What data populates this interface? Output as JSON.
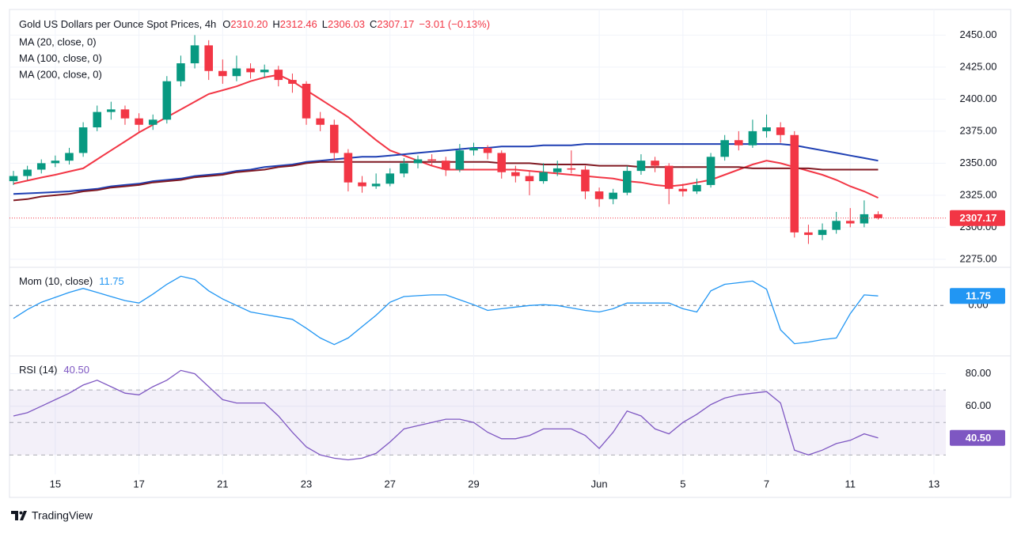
{
  "chart_data": [
    {
      "type": "candlestick",
      "title": "Gold US Dollars per Ounce Spot Prices, 4h",
      "ohlc_legend": [
        {
          "label": "O",
          "value": "2310.20"
        },
        {
          "label": "H",
          "value": "2312.46"
        },
        {
          "label": "L",
          "value": "2306.03"
        },
        {
          "label": "C",
          "value": "2307.17"
        }
      ],
      "change": "−3.01 (−0.13%)",
      "categories": [
        null,
        null,
        null,
        "15",
        null,
        null,
        null,
        null,
        null,
        "17",
        null,
        null,
        null,
        null,
        null,
        "21",
        null,
        null,
        null,
        null,
        null,
        "23",
        null,
        null,
        null,
        null,
        null,
        "27",
        null,
        null,
        null,
        null,
        null,
        "29",
        null,
        null,
        null,
        null,
        null,
        null,
        null,
        null,
        "Jun",
        null,
        null,
        null,
        null,
        null,
        "5",
        null,
        null,
        null,
        null,
        null,
        "7",
        null,
        null,
        null,
        null,
        null,
        "11",
        null,
        null,
        null,
        null,
        null,
        "13"
      ],
      "open": [
        2336,
        2340,
        2345,
        2350,
        2352,
        2358,
        2378,
        2390,
        2392,
        2385,
        2380,
        2384,
        2414,
        2428,
        2442,
        2422,
        2418,
        2424,
        2421,
        2423,
        2415,
        2412,
        2385,
        2380,
        2358,
        2335,
        2332,
        2334,
        2342,
        2350,
        2353,
        2352,
        2345,
        2360,
        2362,
        2358,
        2343,
        2340,
        2336,
        2343,
        2346,
        2345,
        2328,
        2322,
        2327,
        2344,
        2352,
        2348,
        2330,
        2328,
        2333,
        2355,
        2368,
        2364,
        2375,
        2378,
        2372,
        2296,
        2294,
        2298,
        2305,
        2303,
        2310.2,
        null,
        null,
        null,
        null
      ],
      "high": [
        2344,
        2348,
        2353,
        2356,
        2362,
        2382,
        2395,
        2398,
        2395,
        2389,
        2388,
        2418,
        2434,
        2450,
        2446,
        2431,
        2434,
        2428,
        2427,
        2426,
        2420,
        2414,
        2390,
        2384,
        2361,
        2340,
        2342,
        2346,
        2354,
        2356,
        2357,
        2355,
        2365,
        2366,
        2364,
        2360,
        2348,
        2344,
        2350,
        2352,
        2360,
        2348,
        2331,
        2330,
        2348,
        2357,
        2355,
        2350,
        2334,
        2338,
        2358,
        2372,
        2375,
        2384,
        2388,
        2382,
        2375,
        2302,
        2303,
        2312,
        2315,
        2321,
        2312.46,
        null,
        null,
        null,
        null
      ],
      "low": [
        2333,
        2337,
        2342,
        2347,
        2349,
        2355,
        2375,
        2384,
        2380,
        2374,
        2376,
        2381,
        2410,
        2424,
        2415,
        2412,
        2414,
        2416,
        2417,
        2410,
        2405,
        2380,
        2375,
        2352,
        2328,
        2327,
        2330,
        2332,
        2339,
        2346,
        2348,
        2340,
        2343,
        2356,
        2353,
        2338,
        2335,
        2325,
        2334,
        2340,
        2342,
        2322,
        2316,
        2318,
        2325,
        2341,
        2343,
        2318,
        2324,
        2326,
        2331,
        2352,
        2360,
        2362,
        2370,
        2366,
        2292,
        2287,
        2290,
        2295,
        2300,
        2300,
        2306.03,
        null,
        null,
        null,
        null
      ],
      "close": [
        2340,
        2345,
        2350,
        2352,
        2358,
        2378,
        2390,
        2392,
        2385,
        2380,
        2384,
        2414,
        2428,
        2442,
        2422,
        2418,
        2424,
        2421,
        2423,
        2415,
        2412,
        2385,
        2380,
        2358,
        2335,
        2332,
        2334,
        2342,
        2350,
        2353,
        2352,
        2345,
        2360,
        2362,
        2358,
        2343,
        2340,
        2336,
        2343,
        2346,
        2345,
        2328,
        2322,
        2327,
        2344,
        2352,
        2348,
        2330,
        2328,
        2333,
        2355,
        2368,
        2364,
        2375,
        2378,
        2372,
        2296,
        2294,
        2298,
        2305,
        2303,
        2310.18,
        2307.17,
        null,
        null,
        null,
        null
      ],
      "up_color": "#089981",
      "down_color": "#f23645",
      "series": [
        {
          "name": "MA (20, close, 0)",
          "color": "#f23645",
          "values": [
            2334,
            2336.4,
            2338.8,
            2341,
            2343.5,
            2346,
            2353,
            2360,
            2367,
            2374,
            2380,
            2386,
            2392,
            2398,
            2404,
            2407,
            2410,
            2414,
            2417,
            2419,
            2414,
            2407,
            2400,
            2393,
            2386,
            2377,
            2368,
            2360,
            2356,
            2352,
            2348,
            2345,
            2345,
            2345,
            2345,
            2345,
            2345,
            2344,
            2343,
            2342,
            2341,
            2340,
            2339,
            2338,
            2336,
            2335,
            2333,
            2332,
            2333,
            2335,
            2337,
            2341,
            2345,
            2349,
            2352,
            2350,
            2347,
            2344,
            2341,
            2337,
            2332,
            2328,
            2323,
            null,
            null,
            null,
            null
          ]
        },
        {
          "name": "MA (100, close, 0)",
          "color": "#1e3fb3",
          "values": [
            2326,
            2326.5,
            2327,
            2327.5,
            2328,
            2329,
            2330,
            2332,
            2333,
            2334,
            2336,
            2337,
            2338,
            2340,
            2341,
            2342,
            2344,
            2345,
            2347,
            2348,
            2349,
            2351,
            2352,
            2353,
            2354,
            2355,
            2355,
            2356,
            2357,
            2358,
            2359,
            2360,
            2361,
            2362,
            2362,
            2363,
            2363,
            2363,
            2364,
            2364,
            2364,
            2365,
            2365,
            2365,
            2365,
            2365,
            2365,
            2365,
            2365,
            2365,
            2365,
            2365,
            2365,
            2365,
            2365,
            2365,
            2364,
            2362,
            2360,
            2358,
            2356,
            2354,
            2352,
            null,
            null,
            null,
            null
          ]
        },
        {
          "name": "MA (200, close, 0)",
          "color": "#801922",
          "values": [
            2321,
            2322,
            2324,
            2325,
            2326,
            2328,
            2329,
            2331,
            2332,
            2333,
            2335,
            2336,
            2337,
            2339,
            2340,
            2341,
            2343,
            2344,
            2345,
            2347,
            2348,
            2350,
            2351,
            2351,
            2351,
            2351,
            2351,
            2351,
            2351,
            2351,
            2351,
            2351,
            2351,
            2351,
            2351,
            2350,
            2350,
            2350,
            2349,
            2349,
            2349,
            2349,
            2348,
            2348,
            2348,
            2347,
            2347,
            2347,
            2347,
            2347,
            2347,
            2347,
            2347,
            2346,
            2346,
            2346,
            2346,
            2346,
            2345,
            2345,
            2345,
            2345,
            2345,
            null,
            null,
            null,
            null
          ]
        }
      ],
      "ylim": [
        2270,
        2470
      ],
      "yticks": [
        {
          "value": 2275,
          "label": "2275.00"
        },
        {
          "value": 2300,
          "label": "2300.00"
        },
        {
          "value": 2325,
          "label": "2325.00"
        },
        {
          "value": 2350,
          "label": "2350.00"
        },
        {
          "value": 2375,
          "label": "2375.00"
        },
        {
          "value": 2400,
          "label": "2400.00"
        },
        {
          "value": 2425,
          "label": "2425.00"
        },
        {
          "value": 2450,
          "label": "2450.00"
        }
      ],
      "grid": true
    },
    {
      "type": "line",
      "name": "Mom (10, close)",
      "color": "#2196f3",
      "values": [
        -16,
        -5,
        4,
        10,
        16,
        21,
        16,
        11,
        6,
        3,
        14,
        26,
        36,
        32,
        18,
        8,
        0,
        -8,
        -11,
        -14,
        -17,
        -28,
        -40,
        -48,
        -40,
        -26,
        -12,
        4,
        11,
        12,
        13,
        13,
        7,
        1,
        -6,
        -4,
        -2,
        0,
        1,
        0,
        -3,
        -6,
        -8,
        -4,
        3,
        3,
        3,
        3,
        -4,
        -8,
        18,
        26,
        28,
        30,
        20,
        -30,
        -47,
        -45,
        -42,
        -40,
        -10,
        13,
        11.75,
        null,
        null,
        null,
        null
      ],
      "ylim": [
        -60,
        45
      ],
      "yticks": [
        {
          "value": 0,
          "label": "0.00"
        }
      ],
      "tick_line_style": "dashed"
    },
    {
      "type": "line",
      "name": "RSI (14)",
      "color": "#7e57c2",
      "values": [
        54,
        56,
        60,
        64,
        68,
        73,
        76,
        72,
        68,
        67,
        72,
        76,
        82,
        80,
        72,
        64,
        62,
        62,
        62,
        54,
        44,
        35,
        30,
        28,
        27,
        28,
        31,
        38,
        46,
        48,
        50,
        52,
        52,
        50,
        44,
        40,
        40,
        42,
        46,
        46,
        46,
        42,
        34,
        44,
        57,
        54,
        46,
        43,
        50,
        55,
        61,
        65,
        67,
        68,
        69,
        62,
        33,
        30,
        33,
        37,
        39,
        43,
        40.5,
        null,
        null,
        null,
        null
      ],
      "last_label": "40.50",
      "ylim": [
        18,
        90
      ],
      "yticks": [
        {
          "value": 60,
          "label": "60.00"
        },
        {
          "value": 80,
          "label": "80.00"
        }
      ],
      "bands": {
        "lower": 30,
        "middle": 50,
        "upper": 70
      },
      "grid": true
    }
  ],
  "brand": "TradingView"
}
